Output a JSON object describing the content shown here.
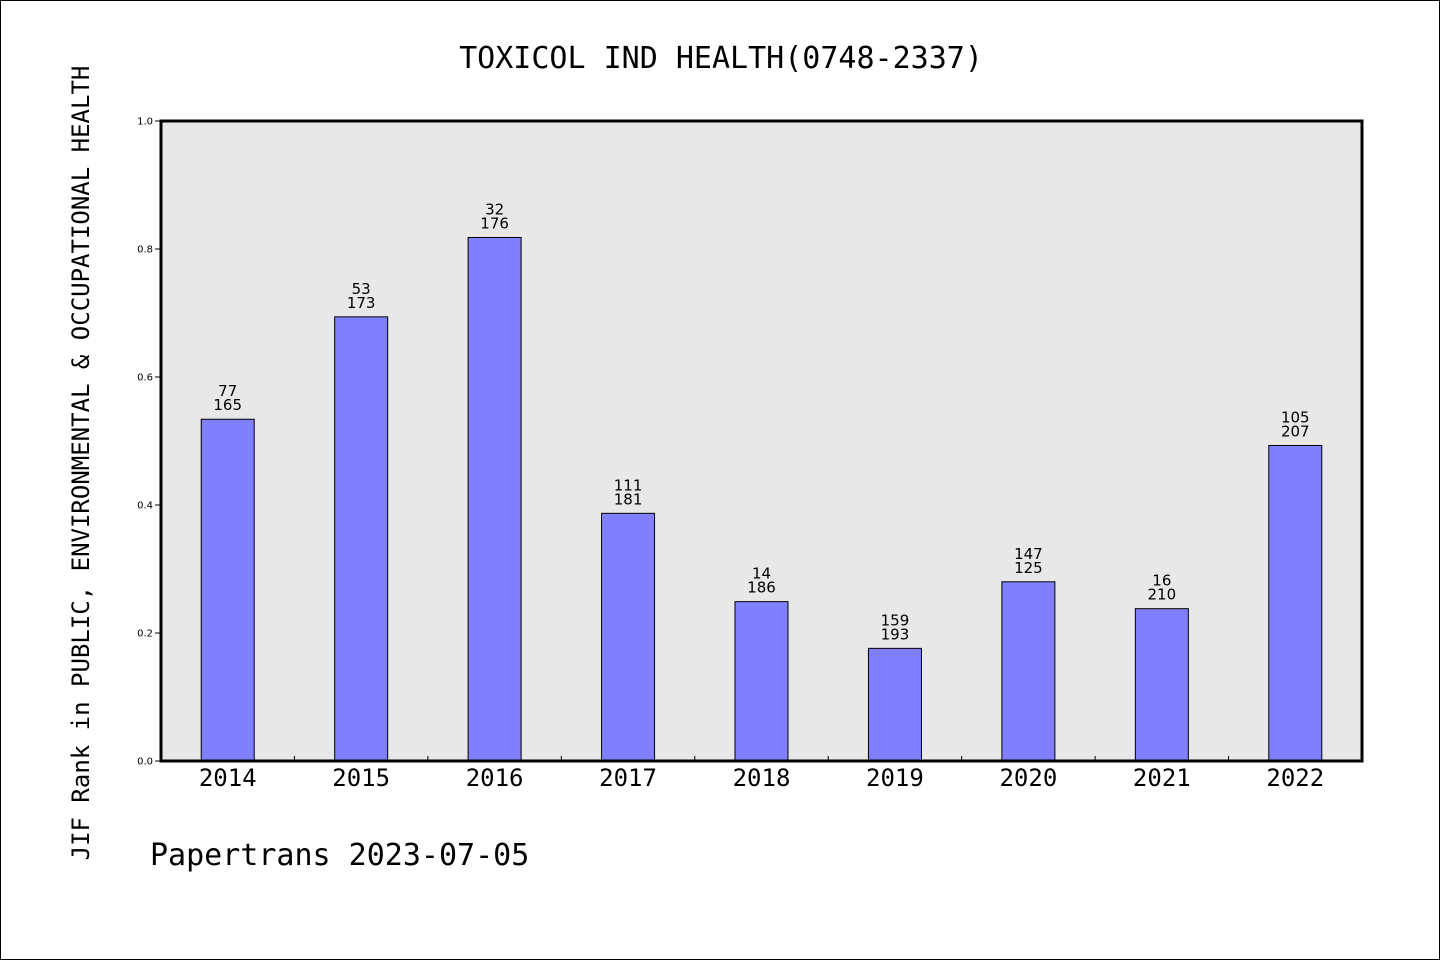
{
  "chart_data": {
    "type": "bar",
    "title": "TOXICOL IND HEALTH(0748-2337)",
    "ylabel": "JIF Rank in PUBLIC, ENVIRONMENTAL & OCCUPATIONAL HEALTH",
    "xlabel": "",
    "ylim": [
      0,
      1.0
    ],
    "yticks": [
      "0.0",
      "0.2",
      "0.4",
      "0.6",
      "0.8",
      "1.0"
    ],
    "grid": false,
    "categories": [
      "2014",
      "2015",
      "2016",
      "2017",
      "2018",
      "2019",
      "2020",
      "2021",
      "2022"
    ],
    "values": [
      0.534,
      0.694,
      0.818,
      0.387,
      0.249,
      0.176,
      0.28,
      0.238,
      0.493
    ],
    "labels_top": [
      "77",
      "53",
      "32",
      "111",
      "14",
      "159",
      "147",
      "16",
      "105"
    ],
    "labels_bottom": [
      "165",
      "173",
      "176",
      "181",
      "186",
      "193",
      "125",
      "210",
      "207"
    ],
    "bar_color": "#8080ff",
    "plot_background": "#e8e8e8",
    "footer": "Papertrans 2023-07-05"
  }
}
